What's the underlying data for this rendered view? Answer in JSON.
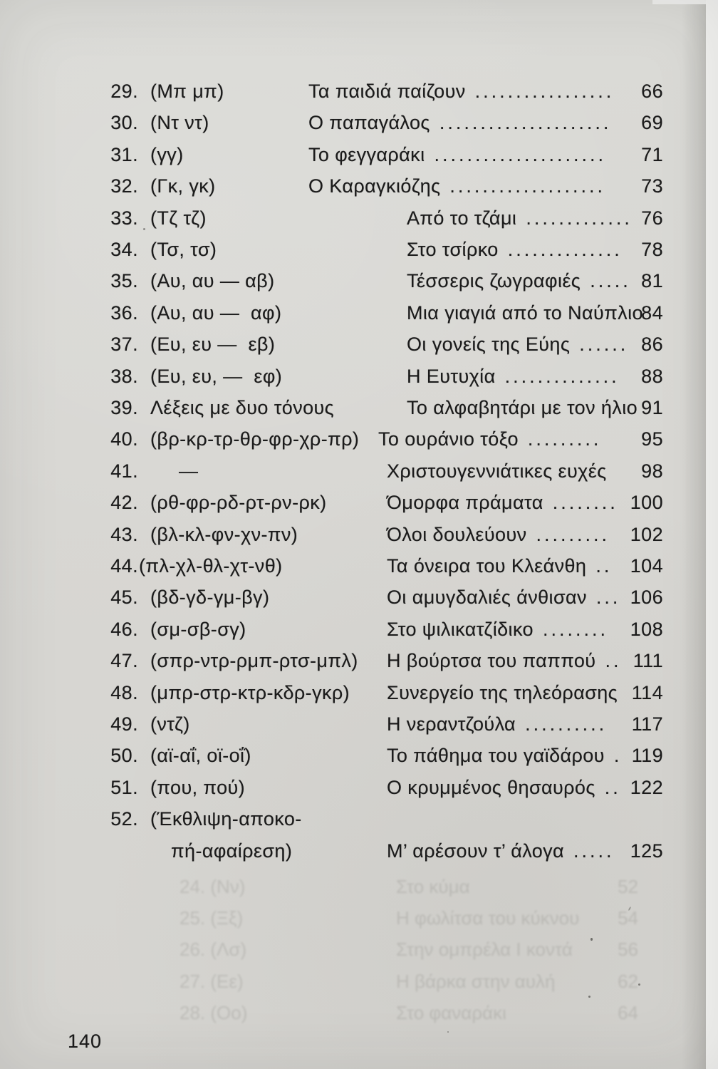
{
  "document": {
    "folio": "140"
  },
  "colors": {
    "paper": "#d8d7d3",
    "ink": "#1b1b1b",
    "edge_white": "#f3f3f1"
  },
  "toc": {
    "rows": [
      {
        "num": "29.",
        "phon": "(Μπ μπ)",
        "title": "Τα παιδιά παίζουν",
        "dots": ".................",
        "page": "66",
        "group": "a"
      },
      {
        "num": "30.",
        "phon": "(Ντ ντ)",
        "title": "Ο παπαγάλος",
        "dots": ".....................",
        "page": "69",
        "group": "a"
      },
      {
        "num": "31.",
        "phon": "(γγ)",
        "title": "Το φεγγαράκι",
        "dots": ".....................",
        "page": "71",
        "group": "a"
      },
      {
        "num": "32.",
        "phon": "(Γκ, γκ)",
        "title": "Ο Καραγκιόζης",
        "dots": "...................",
        "page": "73",
        "group": "a"
      },
      {
        "num": "33.",
        "phon": "(Τζ τζ)",
        "title": "Από το τζάμι",
        "dots": ".............",
        "page": "76",
        "group": "b"
      },
      {
        "num": "34.",
        "phon": "(Τσ, τσ)",
        "title": "Στο τσίρκο",
        "dots": "..............",
        "page": "78",
        "group": "b"
      },
      {
        "num": "35.",
        "phon": "(Αυ, αυ — αβ)",
        "title": "Τέσσερις ζωγραφιές",
        "dots": ".....",
        "page": "81",
        "group": "b"
      },
      {
        "num": "36.",
        "phon": "(Αυ, αυ —  αφ)",
        "title": "Μια γιαγιά από το Ναύπλιο",
        "dots": "",
        "page": "84",
        "group": "b"
      },
      {
        "num": "37.",
        "phon": "(Ευ, ευ —  εβ)",
        "title": "Οι γονείς της Εύης",
        "dots": "......",
        "page": "86",
        "group": "b"
      },
      {
        "num": "38.",
        "phon": "(Ευ, ευ, —  εφ)",
        "title": "Η Ευτυχία",
        "dots": "..............",
        "page": "88",
        "group": "b"
      },
      {
        "num": "39.",
        "phon": "Λέξεις με δυο τόνους",
        "title": "Το αλφαβητάρι με τον ήλιο",
        "dots": "",
        "page": "91",
        "group": "b"
      },
      {
        "num": "40.",
        "phon": "(βρ-κρ-τρ-θρ-φρ-χρ-πρ)",
        "title": "Το ουράνιο τόξο",
        "dots": ".........",
        "page": "95",
        "group": "c40"
      },
      {
        "num": "41.",
        "phon": "—",
        "title": "Χριστουγεννιάτικες ευχές",
        "dots": "",
        "page": "98",
        "group": "c"
      },
      {
        "num": "42.",
        "phon": "(ρθ-φρ-ρδ-ρτ-ρν-ρκ)",
        "title": "Όμορφα πράματα",
        "dots": "........",
        "page": "100",
        "group": "c"
      },
      {
        "num": "43.",
        "phon": "(βλ-κλ-φν-χν-πν)",
        "title": "Όλοι δουλεύουν",
        "dots": ".........",
        "page": "102",
        "group": "c"
      },
      {
        "num": "44.",
        "phon": "(πλ-χλ-θλ-χτ-νθ)",
        "title": "Τα όνειρα του Κλεάνθη",
        "dots": "..",
        "page": "104",
        "group": "c"
      },
      {
        "num": "45.",
        "phon": "(βδ-γδ-γμ-βγ)",
        "title": "Οι αμυγδαλιές άνθισαν",
        "dots": "...",
        "page": "106",
        "group": "c"
      },
      {
        "num": "46.",
        "phon": "(σμ-σβ-σγ)",
        "title": "Στο ψιλικατζίδικο",
        "dots": "........",
        "page": "108",
        "group": "c"
      },
      {
        "num": "47.",
        "phon": "(σπρ-ντρ-ρμπ-ρτσ-μπλ)",
        "title": "Η βούρτσα του παππού",
        "dots": "..",
        "page": "111",
        "group": "c"
      },
      {
        "num": "48.",
        "phon": "(μπρ-στρ-κτρ-κδρ-γκρ)",
        "title": "Συνεργείο της τηλεόρασης",
        "dots": "",
        "page": "114",
        "group": "c"
      },
      {
        "num": "49.",
        "phon": "(ντζ)",
        "title": "Η νεραντζούλα",
        "dots": "..........",
        "page": "117",
        "group": "c"
      },
      {
        "num": "50.",
        "phon": "(αϊ-αΐ, οϊ-οΐ)",
        "title": "Το πάθημα του γαϊδάρου",
        "dots": ".",
        "page": "119",
        "group": "c"
      },
      {
        "num": "51.",
        "phon": "(που, πού)",
        "title": "Ο κρυμμένος θησαυρός",
        "dots": "..",
        "page": "122",
        "group": "c"
      },
      {
        "num": "52.",
        "phon": "(Έκθλιψη-αποκο-",
        "phon2": "πή-αφαίρεση)",
        "title": "Μ’ αρέσουν τ’ άλογα",
        "dots": ".....",
        "page": "125",
        "group": "c"
      }
    ]
  },
  "bleed_through": {
    "rows": [
      {
        "label": "24. (Νν)",
        "title": "Στο κύμα",
        "page": "52"
      },
      {
        "label": "25. (Ξξ)",
        "title": "Η φωλίτσα του κύκνου",
        "page": "54"
      },
      {
        "label": "26. (Λσ)",
        "title": "Στην ομπρέλα Ι κοντά",
        "page": "56"
      },
      {
        "label": "27. (Εε)",
        "title": "Η βάρκα στην αυλή",
        "page": "62"
      },
      {
        "label": "28. (Οο)",
        "title": "Στο φαναράκι",
        "page": "64"
      }
    ]
  }
}
